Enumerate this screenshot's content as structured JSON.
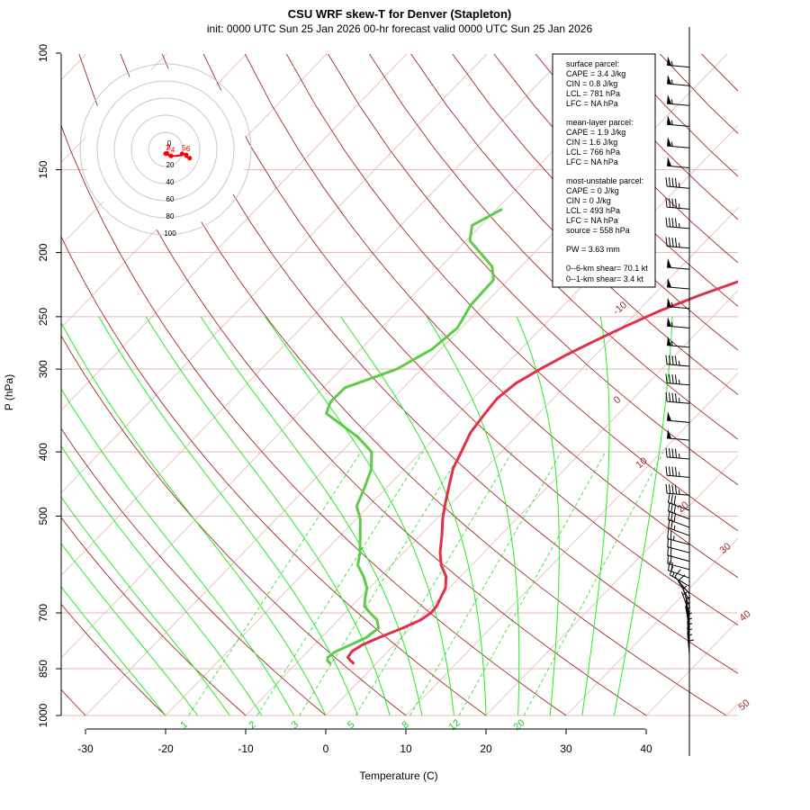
{
  "chart_data": {
    "type": "line",
    "title": "CSU WRF skew-T for Denver (Stapleton)",
    "subtitle": "init: 0000 UTC Sun 25 Jan 2026     00-hr forecast valid 0000 UTC Sun 25 Jan 2026",
    "xlabel": "Temperature (C)",
    "ylabel": "P (hPa)",
    "x_ticks": [
      -30,
      -20,
      -10,
      0,
      10,
      20,
      30,
      40
    ],
    "y_ticks": [
      100,
      150,
      200,
      250,
      300,
      400,
      500,
      700,
      850,
      1000
    ],
    "isotherm_labels": [
      -10,
      0,
      10,
      20,
      30,
      40,
      50
    ],
    "mixing_ratio_labels": [
      1,
      2,
      3,
      5,
      8,
      12,
      20
    ],
    "series": [
      {
        "name": "temperature",
        "color": "#e0304a",
        "points": [
          [
            -2.7,
            836
          ],
          [
            -3.5,
            827
          ],
          [
            -4.3,
            817
          ],
          [
            -4.5,
            800
          ],
          [
            -4.0,
            783
          ],
          [
            -2.8,
            763
          ],
          [
            -1.0,
            738
          ],
          [
            0.3,
            717
          ],
          [
            0.7,
            700
          ],
          [
            0.6,
            684
          ],
          [
            0.1,
            665
          ],
          [
            -0.5,
            642
          ],
          [
            -1.8,
            617
          ],
          [
            -3.8,
            593
          ],
          [
            -5.5,
            567
          ],
          [
            -7.3,
            535
          ],
          [
            -9.2,
            505
          ],
          [
            -10.5,
            483
          ],
          [
            -12.3,
            452
          ],
          [
            -14.0,
            424
          ],
          [
            -15.0,
            400
          ],
          [
            -16.2,
            374
          ],
          [
            -16.7,
            350
          ],
          [
            -17.0,
            332
          ],
          [
            -16.5,
            315
          ],
          [
            -15.2,
            300
          ],
          [
            -13.7,
            286
          ],
          [
            -11.8,
            272
          ],
          [
            -9.8,
            259
          ],
          [
            -7.3,
            245
          ],
          [
            -4.2,
            232
          ],
          [
            -0.4,
            219
          ],
          [
            3.0,
            207
          ],
          [
            6.4,
            195
          ],
          [
            8.8,
            183
          ],
          [
            10.2,
            173
          ],
          [
            11.2,
            162
          ],
          [
            12.1,
            150
          ],
          [
            12.8,
            141
          ],
          [
            13.7,
            131
          ],
          [
            14.7,
            121
          ],
          [
            15.7,
            111
          ],
          [
            16.3,
            107
          ]
        ]
      },
      {
        "name": "dewpoint",
        "color": "#5ccc4a",
        "points": [
          [
            -5.6,
            836
          ],
          [
            -6.4,
            827
          ],
          [
            -6.8,
            817
          ],
          [
            -6.5,
            800
          ],
          [
            -5.5,
            783
          ],
          [
            -4.4,
            763
          ],
          [
            -4.0,
            738
          ],
          [
            -5.2,
            717
          ],
          [
            -6.9,
            700
          ],
          [
            -8.4,
            684
          ],
          [
            -9.3,
            665
          ],
          [
            -10.3,
            642
          ],
          [
            -12.1,
            617
          ],
          [
            -14.2,
            593
          ],
          [
            -15.5,
            567
          ],
          [
            -17.5,
            535
          ],
          [
            -19.5,
            505
          ],
          [
            -21.5,
            483
          ],
          [
            -22.8,
            452
          ],
          [
            -24.2,
            424
          ],
          [
            -26.2,
            400
          ],
          [
            -29.7,
            380
          ],
          [
            -36.5,
            350
          ],
          [
            -37.4,
            336
          ],
          [
            -37.3,
            320
          ],
          [
            -33.1,
            300
          ],
          [
            -31.1,
            280
          ],
          [
            -30.5,
            260
          ],
          [
            -31.6,
            240
          ],
          [
            -31.8,
            220
          ],
          [
            -33.6,
            210
          ],
          [
            -36.8,
            200
          ],
          [
            -39.5,
            192
          ],
          [
            -41.1,
            182
          ],
          [
            -39.3,
            172
          ]
        ]
      }
    ],
    "info_box": {
      "surface_header": "surface parcel:",
      "surface_cape": "CAPE = 3.4 J/kg",
      "surface_cin": "CIN = 0.8 J/kg",
      "surface_lcl": "LCL = 781 hPa",
      "surface_lfc": "LFC = NA hPa",
      "mean_header": "mean-layer parcel:",
      "mean_cape": "CAPE = 1.9 J/kg",
      "mean_cin": "CIN = 1.6 J/kg",
      "mean_lcl": "LCL = 766 hPa",
      "mean_lfc": "LFC = NA hPa",
      "mu_header": "most-unstable parcel:",
      "mu_cape": "CAPE = 0 J/kg",
      "mu_cin": "CIN = 0 J/kg",
      "mu_lcl": "LCL = 493 hPa",
      "mu_lfc": "LFC = NA hPa",
      "mu_source": "source = 558 hPa",
      "pw": "PW =  3.63 mm",
      "shear06": "0--6-km shear= 70.1 kt",
      "shear01": "0--1-km shear= 3.4 kt"
    },
    "hodograph": {
      "ring_labels": [
        "20",
        "40",
        "60",
        "80",
        "100"
      ],
      "height_labels": [
        "0",
        "1",
        "2",
        "3",
        "4",
        "5",
        "6"
      ],
      "trace_color": "#ff0000"
    },
    "wind_barbs": [
      {
        "p": 105,
        "speed_kt": 55,
        "dir": 275
      },
      {
        "p": 112,
        "speed_kt": 55,
        "dir": 275
      },
      {
        "p": 120,
        "speed_kt": 55,
        "dir": 275
      },
      {
        "p": 129,
        "speed_kt": 55,
        "dir": 275
      },
      {
        "p": 139,
        "speed_kt": 55,
        "dir": 275
      },
      {
        "p": 149,
        "speed_kt": 50,
        "dir": 275
      },
      {
        "p": 160,
        "speed_kt": 45,
        "dir": 275
      },
      {
        "p": 172,
        "speed_kt": 45,
        "dir": 275
      },
      {
        "p": 184,
        "speed_kt": 45,
        "dir": 275
      },
      {
        "p": 197,
        "speed_kt": 45,
        "dir": 275
      },
      {
        "p": 212,
        "speed_kt": 50,
        "dir": 275
      },
      {
        "p": 227,
        "speed_kt": 50,
        "dir": 275
      },
      {
        "p": 243,
        "speed_kt": 55,
        "dir": 275
      },
      {
        "p": 260,
        "speed_kt": 55,
        "dir": 275
      },
      {
        "p": 278,
        "speed_kt": 55,
        "dir": 275
      },
      {
        "p": 297,
        "speed_kt": 45,
        "dir": 275
      },
      {
        "p": 317,
        "speed_kt": 45,
        "dir": 275
      },
      {
        "p": 338,
        "speed_kt": 45,
        "dir": 275
      },
      {
        "p": 361,
        "speed_kt": 50,
        "dir": 275
      },
      {
        "p": 384,
        "speed_kt": 50,
        "dir": 275
      },
      {
        "p": 410,
        "speed_kt": 45,
        "dir": 275
      },
      {
        "p": 437,
        "speed_kt": 45,
        "dir": 275
      },
      {
        "p": 465,
        "speed_kt": 45,
        "dir": 275
      },
      {
        "p": 490,
        "speed_kt": 30,
        "dir": 290
      },
      {
        "p": 505,
        "speed_kt": 30,
        "dir": 290
      },
      {
        "p": 520,
        "speed_kt": 30,
        "dir": 290
      },
      {
        "p": 535,
        "speed_kt": 25,
        "dir": 290
      },
      {
        "p": 552,
        "speed_kt": 25,
        "dir": 285
      },
      {
        "p": 568,
        "speed_kt": 20,
        "dir": 285
      },
      {
        "p": 585,
        "speed_kt": 20,
        "dir": 285
      },
      {
        "p": 602,
        "speed_kt": 20,
        "dir": 285
      },
      {
        "p": 620,
        "speed_kt": 20,
        "dir": 290
      },
      {
        "p": 638,
        "speed_kt": 15,
        "dir": 300
      },
      {
        "p": 655,
        "speed_kt": 10,
        "dir": 320
      },
      {
        "p": 670,
        "speed_kt": 10,
        "dir": 330
      },
      {
        "p": 685,
        "speed_kt": 5,
        "dir": 340
      },
      {
        "p": 700,
        "speed_kt": 5,
        "dir": 340
      },
      {
        "p": 712,
        "speed_kt": 5,
        "dir": 350
      },
      {
        "p": 725,
        "speed_kt": 5,
        "dir": 350
      },
      {
        "p": 738,
        "speed_kt": 5,
        "dir": 350
      },
      {
        "p": 752,
        "speed_kt": 5,
        "dir": 355
      },
      {
        "p": 766,
        "speed_kt": 5,
        "dir": 355
      },
      {
        "p": 780,
        "speed_kt": 5,
        "dir": 355
      },
      {
        "p": 795,
        "speed_kt": 5,
        "dir": 355
      },
      {
        "p": 810,
        "speed_kt": 5,
        "dir": 355
      },
      {
        "p": 825,
        "speed_kt": 5,
        "dir": 360
      }
    ],
    "x_range": [
      -33,
      46
    ],
    "y_range": [
      1000,
      100
    ],
    "y_scale": "log",
    "grid": true
  }
}
